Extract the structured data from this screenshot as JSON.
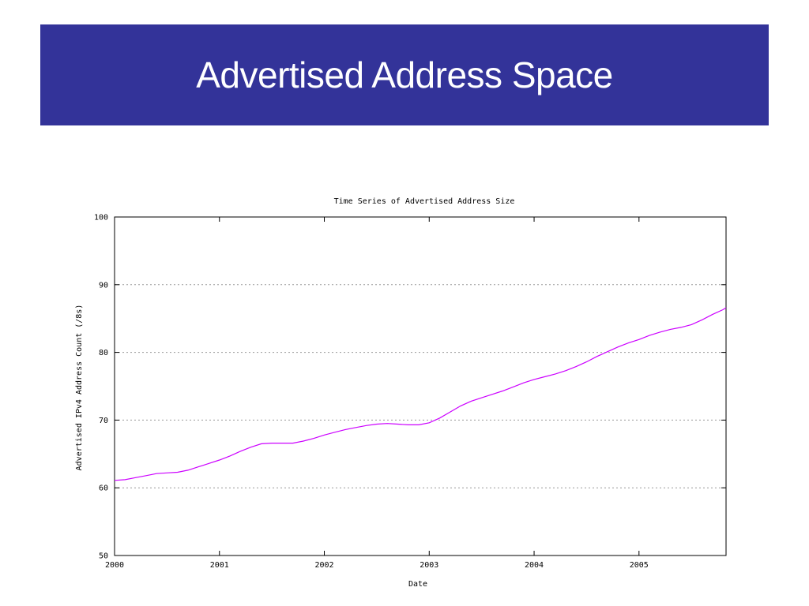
{
  "slide": {
    "title": "Advertised Address Space"
  },
  "chart_data": {
    "type": "line",
    "title": "Time Series of Advertised Address Size",
    "xlabel": "Date",
    "ylabel": "Advertised IPv4 Address Count (/8s)",
    "xlim": [
      2000.0,
      2005.83
    ],
    "ylim": [
      50,
      100
    ],
    "x_ticks": [
      2000,
      2001,
      2002,
      2003,
      2004,
      2005
    ],
    "y_ticks": [
      50,
      60,
      70,
      80,
      90,
      100
    ],
    "grid": "horizontal-dotted",
    "line_color": "#cc00ff",
    "series": [
      {
        "x": [
          2000.0,
          2000.1,
          2000.2,
          2000.3,
          2000.4,
          2000.5,
          2000.6,
          2000.7,
          2000.8,
          2000.9,
          2001.0,
          2001.1,
          2001.2,
          2001.3,
          2001.4,
          2001.5,
          2001.6,
          2001.7,
          2001.8,
          2001.9,
          2002.0,
          2002.1,
          2002.2,
          2002.3,
          2002.4,
          2002.5,
          2002.6,
          2002.7,
          2002.8,
          2002.9,
          2003.0,
          2003.1,
          2003.2,
          2003.3,
          2003.4,
          2003.5,
          2003.6,
          2003.7,
          2003.8,
          2003.9,
          2004.0,
          2004.1,
          2004.2,
          2004.3,
          2004.4,
          2004.5,
          2004.6,
          2004.7,
          2004.8,
          2004.9,
          2005.0,
          2005.1,
          2005.2,
          2005.3,
          2005.4,
          2005.5,
          2005.6,
          2005.7,
          2005.8,
          2005.83
        ],
        "y": [
          61.1,
          61.2,
          61.5,
          61.8,
          62.1,
          62.2,
          62.3,
          62.6,
          63.1,
          63.6,
          64.1,
          64.7,
          65.4,
          66.0,
          66.5,
          66.6,
          66.6,
          66.6,
          66.9,
          67.3,
          67.8,
          68.2,
          68.6,
          68.9,
          69.2,
          69.4,
          69.5,
          69.4,
          69.3,
          69.3,
          69.6,
          70.3,
          71.2,
          72.1,
          72.8,
          73.3,
          73.8,
          74.3,
          74.9,
          75.5,
          76.0,
          76.4,
          76.8,
          77.3,
          77.9,
          78.6,
          79.4,
          80.1,
          80.8,
          81.4,
          81.9,
          82.5,
          83.0,
          83.4,
          83.7,
          84.1,
          84.8,
          85.6,
          86.3,
          86.6
        ]
      }
    ]
  }
}
